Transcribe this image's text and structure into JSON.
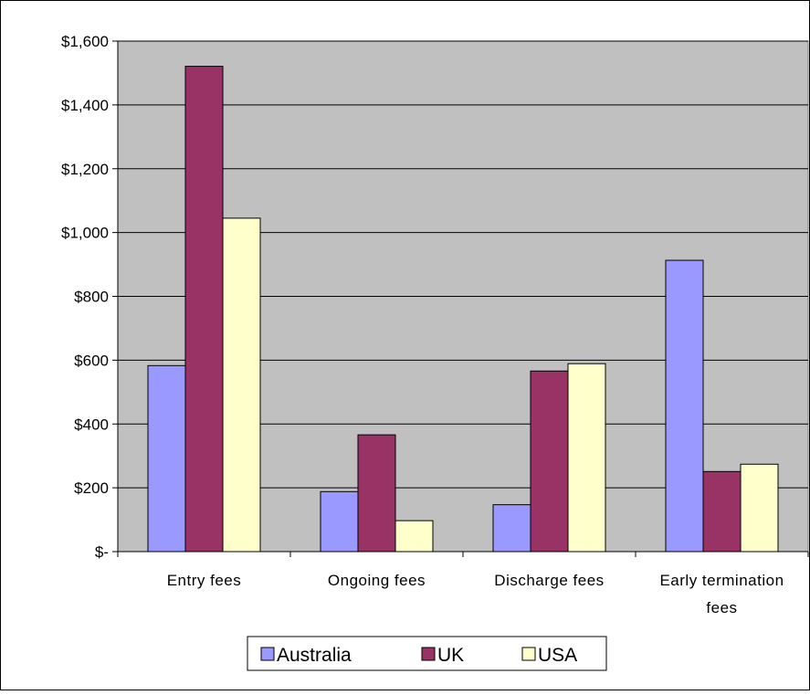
{
  "chart_data": {
    "type": "bar",
    "title": "",
    "xlabel": "",
    "ylabel": "",
    "categories": [
      [
        "Entry fees"
      ],
      [
        "Ongoing fees"
      ],
      [
        "Discharge fees"
      ],
      [
        "Early termination",
        "fees"
      ]
    ],
    "series": [
      {
        "name": "Australia",
        "color": "#9999ff",
        "values": [
          583,
          188,
          147,
          913
        ]
      },
      {
        "name": "UK",
        "color": "#993366",
        "values": [
          1521,
          366,
          566,
          251
        ]
      },
      {
        "name": "USA",
        "color": "#ffffcc",
        "values": [
          1045,
          97,
          589,
          274
        ]
      }
    ],
    "ylim": [
      0,
      1600
    ],
    "yticks": [
      0,
      200,
      400,
      600,
      800,
      1000,
      1200,
      1400,
      1600
    ],
    "ytick_labels": [
      "$-",
      "$200",
      "$400",
      "$600",
      "$800",
      "$1,000",
      "$1,200",
      "$1,400",
      "$1,600"
    ],
    "grid": true,
    "plot_background": "#c0c0c0",
    "legend_position": "bottom"
  }
}
